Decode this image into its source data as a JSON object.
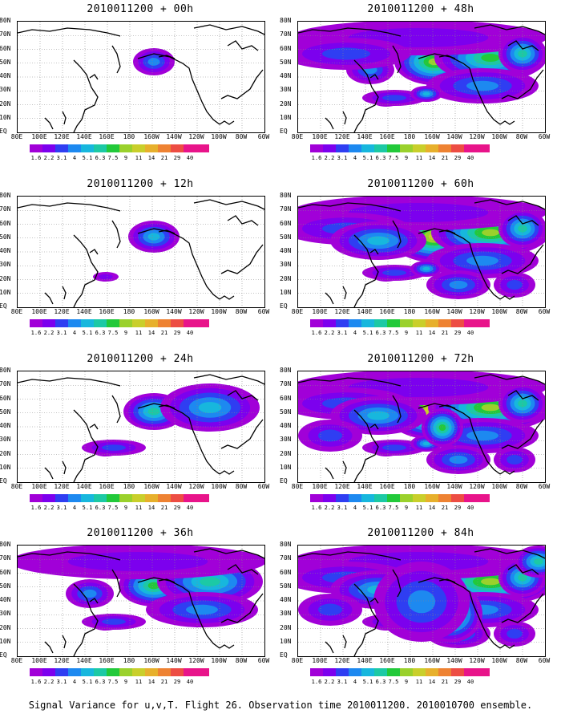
{
  "panels": [
    {
      "title": "2010011200 + 00h",
      "level": 1
    },
    {
      "title": "2010011200 + 48h",
      "level": 5
    },
    {
      "title": "2010011200 + 12h",
      "level": 2
    },
    {
      "title": "2010011200 + 60h",
      "level": 6
    },
    {
      "title": "2010011200 + 24h",
      "level": 3
    },
    {
      "title": "2010011200 + 72h",
      "level": 7
    },
    {
      "title": "2010011200 + 36h",
      "level": 4
    },
    {
      "title": "2010011200 + 84h",
      "level": 8
    }
  ],
  "lat_labels": [
    "80N",
    "70N",
    "60N",
    "50N",
    "40N",
    "30N",
    "20N",
    "10N",
    "EQ"
  ],
  "lon_labels": [
    "80E",
    "100E",
    "120E",
    "140E",
    "160E",
    "180",
    "160W",
    "140W",
    "120W",
    "100W",
    "80W",
    "60W"
  ],
  "colorbar": {
    "labels": [
      "1.6",
      "2.2",
      "3.1",
      "4",
      "5.1",
      "6.3",
      "7.5",
      "9",
      "11",
      "14",
      "21",
      "29",
      "40"
    ],
    "colors": [
      "#a100d8",
      "#7c00ee",
      "#2f3ef2",
      "#1d89f0",
      "#17b7dd",
      "#1cc9a5",
      "#22c93a",
      "#9ad12c",
      "#c9cf2b",
      "#e7b02c",
      "#ee8232",
      "#ed4d43",
      "#e8148a"
    ]
  },
  "caption": "Signal Variance for u,v,T. Flight 26. Observation time 2010011200. 2010010700 ensemble."
}
